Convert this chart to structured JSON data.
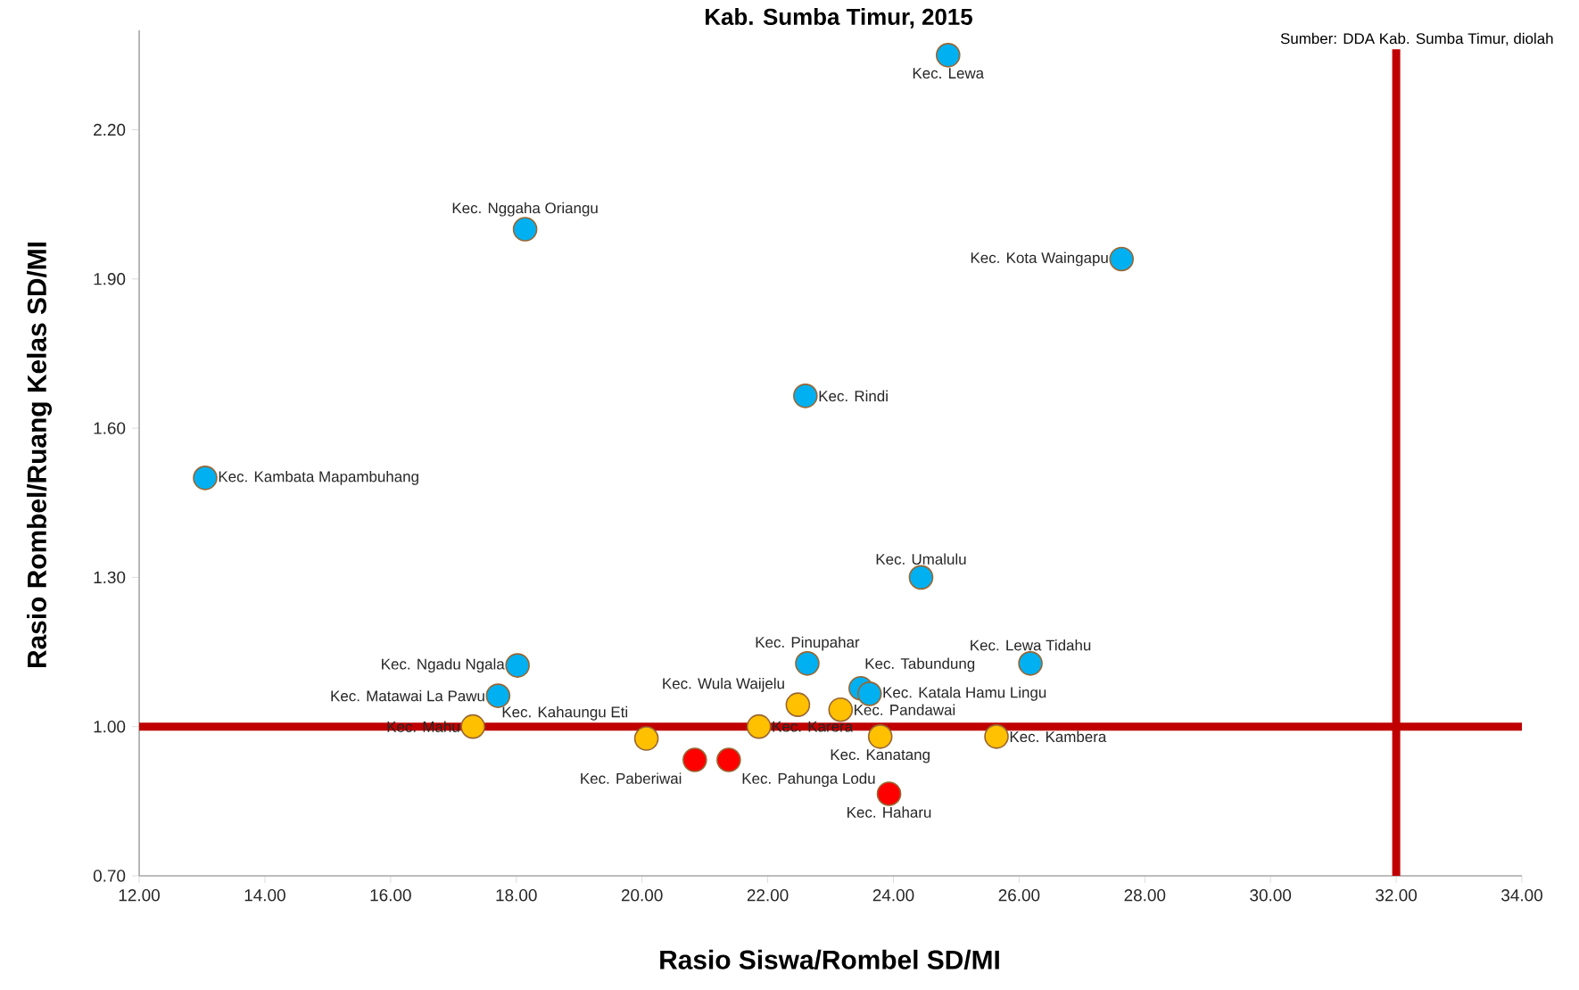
{
  "chart_data": {
    "type": "scatter",
    "title": "Kab. Sumba Timur, 2015",
    "xlabel": "Rasio Siswa/Rombel SD/MI",
    "ylabel": "Rasio Rombel/Ruang Kelas SD/MI",
    "xlim": [
      12,
      34
    ],
    "ylim": [
      0.7,
      2.4
    ],
    "xticks": [
      {
        "value": 12,
        "label": "12.00"
      },
      {
        "value": 14,
        "label": "14.00"
      },
      {
        "value": 16,
        "label": "16.00"
      },
      {
        "value": 18,
        "label": "18.00"
      },
      {
        "value": 20,
        "label": "20.00"
      },
      {
        "value": 22,
        "label": "22.00"
      },
      {
        "value": 24,
        "label": "24.00"
      },
      {
        "value": 26,
        "label": "26.00"
      },
      {
        "value": 28,
        "label": "28.00"
      },
      {
        "value": 30,
        "label": "30.00"
      },
      {
        "value": 32,
        "label": "32.00"
      },
      {
        "value": 34,
        "label": "34.00"
      }
    ],
    "yticks": [
      {
        "value": 0.7,
        "label": "0.70"
      },
      {
        "value": 1.0,
        "label": "1.00"
      },
      {
        "value": 1.3,
        "label": "1.30"
      },
      {
        "value": 1.6,
        "label": "1.60"
      },
      {
        "value": 1.9,
        "label": "1.90"
      },
      {
        "value": 2.2,
        "label": "2.20"
      }
    ],
    "marker": "circle",
    "grid": false,
    "series": [
      {
        "color": "#00b0f0",
        "x": [
          24.87,
          18.14,
          27.63,
          22.6,
          13.05,
          24.44,
          26.18,
          18.02,
          17.71,
          22.63,
          23.48,
          23.62
        ],
        "values": [
          2.35,
          2.0,
          1.94,
          1.665,
          1.5,
          1.3,
          1.127,
          1.123,
          1.062,
          1.127,
          1.077,
          1.066
        ]
      },
      {
        "color": "#ffc000",
        "x": [
          17.31,
          20.07,
          22.48,
          21.86,
          23.16,
          23.79,
          25.64
        ],
        "values": [
          1.0,
          0.976,
          1.044,
          1.0,
          1.034,
          0.98,
          0.98
        ]
      },
      {
        "color": "#ff0000",
        "x": [
          20.84,
          21.38,
          23.93
        ],
        "values": [
          0.933,
          0.933,
          0.865
        ]
      }
    ],
    "ref_lines": [
      {
        "axis": "y",
        "value": 1.0,
        "color": "#c00000"
      },
      {
        "axis": "x",
        "value": 32,
        "color": "#c00000"
      }
    ],
    "annotations": [
      {
        "text": "Kec. Lewa",
        "x": 24.87,
        "y": 2.35
      },
      {
        "text": "Kec. Nggaha Oriangu",
        "x": 18.14,
        "y": 2.0
      },
      {
        "text": "Kec. Kota Waingapu",
        "x": 27.63,
        "y": 1.94
      },
      {
        "text": "Kec. Rindi",
        "x": 22.6,
        "y": 1.665
      },
      {
        "text": "Kec. Kambata Mapambuhang",
        "x": 13.05,
        "y": 1.5
      },
      {
        "text": "Kec. Umalulu",
        "x": 24.44,
        "y": 1.3
      },
      {
        "text": "Kec. Lewa Tidahu",
        "x": 26.18,
        "y": 1.127
      },
      {
        "text": "Kec. Ngadu Ngala",
        "x": 18.02,
        "y": 1.123
      },
      {
        "text": "Kec. Matawai La Pawu",
        "x": 17.71,
        "y": 1.062
      },
      {
        "text": "Kec. Pinupahar",
        "x": 22.63,
        "y": 1.127
      },
      {
        "text": "Kec. Tabundung",
        "x": 23.48,
        "y": 1.077
      },
      {
        "text": "Kec. Katala Hamu Lingu",
        "x": 23.62,
        "y": 1.066
      },
      {
        "text": "Kec. Mahu",
        "x": 17.31,
        "y": 1.0
      },
      {
        "text": "Kec. Kahaungu Eti",
        "x": 20.07,
        "y": 0.976
      },
      {
        "text": "Kec. Wula Waijelu",
        "x": 22.48,
        "y": 1.044
      },
      {
        "text": "Kec. Karera",
        "x": 21.86,
        "y": 1.0
      },
      {
        "text": "Kec. Pandawai",
        "x": 23.16,
        "y": 1.034
      },
      {
        "text": "Kec. Kanatang",
        "x": 23.79,
        "y": 0.98
      },
      {
        "text": "Kec. Kambera",
        "x": 25.64,
        "y": 0.98
      },
      {
        "text": "Kec. Paberiwai",
        "x": 20.84,
        "y": 0.933
      },
      {
        "text": "Kec. Pahunga Lodu",
        "x": 21.38,
        "y": 0.933
      },
      {
        "text": "Kec. Haharu",
        "x": 23.93,
        "y": 0.865
      },
      "Sumber: DDA Kab. Sumba Timur, diolah"
    ]
  }
}
